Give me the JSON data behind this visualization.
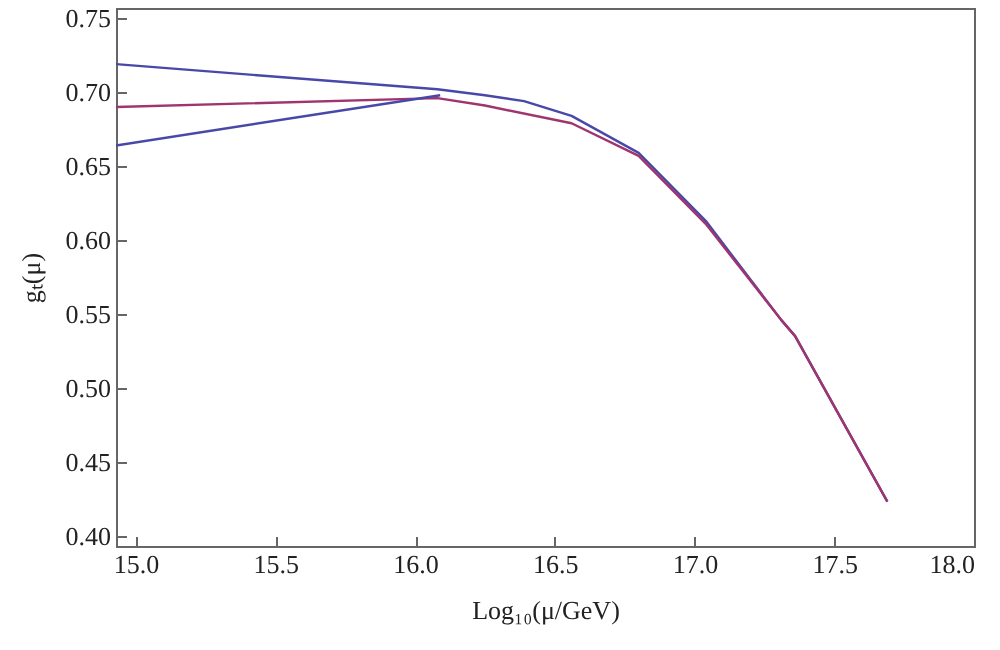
{
  "chart_data": {
    "type": "line",
    "xlabel": "Log₁₀(μ/GeV)",
    "ylabel": "gₜ(μ)",
    "xlim": [
      14.93,
      18.0
    ],
    "ylim": [
      0.393,
      0.757
    ],
    "xticks": [
      {
        "value": 15,
        "label": "15.0"
      },
      15.5,
      {
        "value": 16,
        "label": "16.0"
      },
      16.5,
      {
        "value": 17,
        "label": "17.0"
      },
      17.5,
      {
        "value": 18,
        "label": "18.0"
      }
    ],
    "yticks": [
      {
        "value": 0.4,
        "label": "0.40"
      },
      0.45,
      {
        "value": 0.5,
        "label": "0.50"
      },
      0.55,
      {
        "value": 0.6,
        "label": "0.60"
      },
      0.65,
      {
        "value": 0.7,
        "label": "0.70"
      },
      0.75
    ],
    "line_style": "solid",
    "marker": "none",
    "series": [
      {
        "color": "#4848a8",
        "x": [
          14.93,
          16.08,
          16.25,
          16.39,
          16.56,
          16.8,
          17.04,
          17.31,
          17.36,
          17.69
        ],
        "values": [
          0.719,
          0.702,
          0.698,
          0.694,
          0.684,
          0.659,
          0.613,
          0.546,
          0.535,
          0.423
        ]
      },
      {
        "color": "#a0346e",
        "x": [
          14.93,
          16.08,
          16.25,
          16.56,
          16.8,
          17.04,
          17.31,
          17.36,
          17.69
        ],
        "values": [
          0.69,
          0.696,
          0.691,
          0.679,
          0.657,
          0.611,
          0.546,
          0.535,
          0.423
        ]
      },
      {
        "color": "#4848a8",
        "x": [
          14.93,
          16.09
        ],
        "values": [
          0.664,
          0.698
        ]
      }
    ]
  }
}
